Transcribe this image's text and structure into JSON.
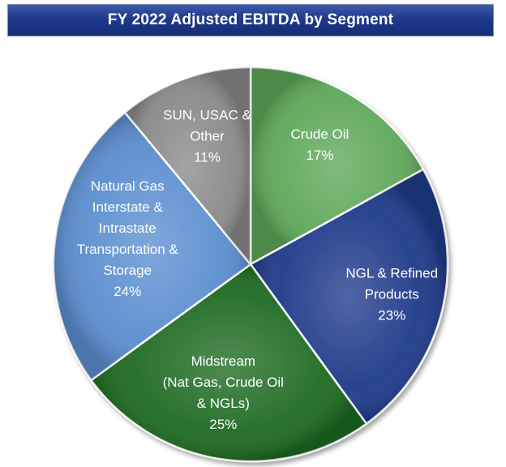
{
  "chart_data": {
    "type": "pie",
    "title": "FY 2022 Adjusted EBITDA by Segment",
    "slices": [
      {
        "label_lines": [
          "Crude Oil"
        ],
        "value": 17,
        "pct_label": "17%",
        "color": "#5ea85a"
      },
      {
        "label_lines": [
          "NGL & Refined",
          "Products"
        ],
        "value": 23,
        "pct_label": "23%",
        "color": "#1f3a8a"
      },
      {
        "label_lines": [
          "Midstream",
          "(Nat Gas, Crude Oil",
          "& NGLs)"
        ],
        "value": 25,
        "pct_label": "25%",
        "color": "#1e6b22"
      },
      {
        "label_lines": [
          "Natural Gas",
          "Interstate &",
          "Intrastate",
          "Transportation &",
          "Storage"
        ],
        "value": 24,
        "pct_label": "24%",
        "color": "#5b8ed0"
      },
      {
        "label_lines": [
          "SUN, USAC &",
          "Other"
        ],
        "value": 11,
        "pct_label": "11%",
        "color": "#8a8a8a"
      }
    ]
  }
}
